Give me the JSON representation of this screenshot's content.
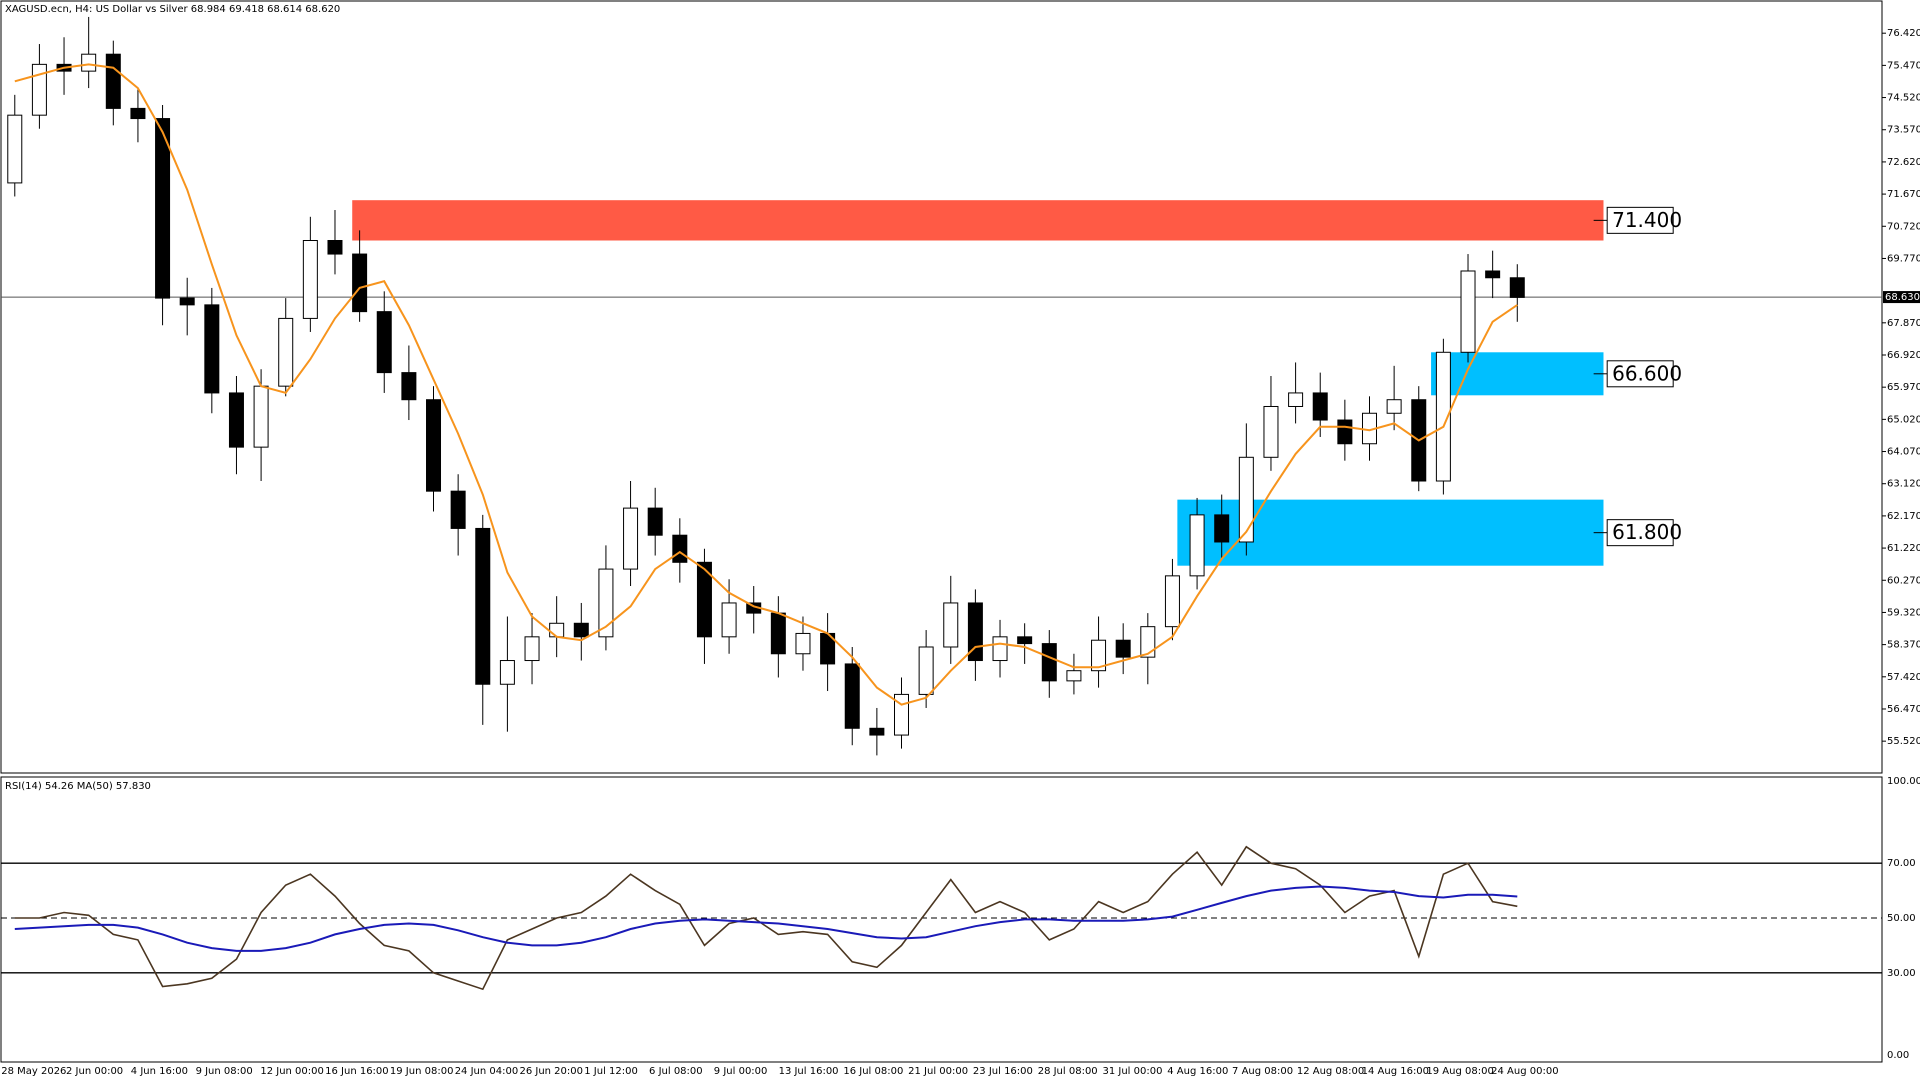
{
  "chart_data": [
    {
      "type": "candlestick",
      "title": "XAGUSD.ecn, H4:  US Dollar vs Silver  68.984 69.418 68.614 68.620",
      "ylim": [
        54.58,
        77.4
      ],
      "yticks": [
        {
          "value": 76.42,
          "label": "76.420"
        },
        {
          "value": 75.47,
          "label": "75.470"
        },
        {
          "value": 74.52,
          "label": "74.520"
        },
        {
          "value": 73.57,
          "label": "73.570"
        },
        {
          "value": 72.62,
          "label": "72.620"
        },
        {
          "value": 71.67,
          "label": "71.670"
        },
        {
          "value": 70.72,
          "label": "70.720"
        },
        {
          "value": 69.77,
          "label": "69.770"
        },
        {
          "value": 67.87,
          "label": "67.870"
        },
        {
          "value": 66.92,
          "label": "66.920"
        },
        {
          "value": 65.97,
          "label": "65.970"
        },
        {
          "value": 65.02,
          "label": "65.020"
        },
        {
          "value": 64.07,
          "label": "64.070"
        },
        {
          "value": 63.12,
          "label": "63.120"
        },
        {
          "value": 62.17,
          "label": "62.170"
        },
        {
          "value": 61.22,
          "label": "61.220"
        },
        {
          "value": 60.27,
          "label": "60.270"
        },
        {
          "value": 59.32,
          "label": "59.320"
        },
        {
          "value": 58.37,
          "label": "58.370"
        },
        {
          "value": 57.42,
          "label": "57.420"
        },
        {
          "value": 56.47,
          "label": "56.470"
        },
        {
          "value": 55.52,
          "label": "55.520"
        }
      ],
      "open": [
        72.0,
        74.0,
        75.5,
        75.3,
        75.8,
        74.2,
        73.9,
        68.6,
        68.4,
        65.8,
        64.2,
        66.0,
        68.0,
        70.3,
        69.9,
        68.2,
        66.4,
        65.6,
        62.9,
        61.8,
        57.2,
        57.9,
        58.6,
        59.0,
        58.6,
        60.6,
        62.4,
        61.6,
        60.8,
        58.6,
        59.6,
        59.3,
        58.1,
        58.7,
        57.8,
        55.9,
        55.7,
        56.9,
        58.3,
        59.6,
        57.9,
        58.6,
        58.4,
        57.3,
        57.6,
        58.5,
        58.0,
        58.9,
        60.4,
        62.2,
        61.4,
        63.9,
        65.4,
        65.8,
        65.0,
        64.3,
        65.2,
        65.6,
        63.2,
        67.0,
        69.4,
        69.2
      ],
      "high": [
        74.6,
        76.1,
        76.3,
        76.9,
        76.2,
        74.8,
        74.3,
        69.2,
        68.9,
        66.3,
        66.5,
        68.6,
        71.0,
        71.2,
        70.6,
        68.8,
        67.2,
        66.0,
        63.4,
        62.2,
        59.2,
        59.3,
        59.8,
        59.6,
        61.3,
        63.2,
        63.0,
        62.1,
        61.2,
        60.3,
        60.1,
        59.8,
        59.2,
        59.3,
        58.3,
        56.5,
        57.4,
        58.8,
        60.4,
        60.0,
        59.1,
        59.0,
        58.8,
        58.1,
        59.2,
        59.0,
        59.3,
        60.9,
        62.7,
        62.8,
        64.9,
        66.3,
        66.7,
        66.4,
        65.6,
        65.7,
        66.6,
        66.0,
        67.4,
        69.9,
        70.0,
        69.6
      ],
      "low": [
        71.6,
        73.6,
        74.6,
        74.8,
        73.7,
        73.2,
        67.8,
        67.5,
        65.2,
        63.4,
        63.2,
        65.7,
        67.6,
        69.3,
        67.9,
        65.8,
        65.0,
        62.3,
        61.0,
        56.0,
        55.8,
        57.2,
        58.0,
        57.9,
        58.2,
        60.1,
        61.0,
        60.2,
        57.8,
        58.1,
        58.7,
        57.4,
        57.6,
        57.0,
        55.4,
        55.1,
        55.3,
        56.5,
        57.8,
        57.3,
        57.4,
        57.8,
        56.8,
        56.9,
        57.1,
        57.5,
        57.2,
        58.5,
        60.0,
        60.9,
        61.0,
        63.5,
        64.9,
        64.5,
        63.8,
        63.8,
        64.7,
        62.9,
        62.8,
        66.7,
        68.6,
        67.9
      ],
      "close": [
        74.0,
        75.5,
        75.3,
        75.8,
        74.2,
        73.9,
        68.6,
        68.4,
        65.8,
        64.2,
        66.0,
        68.0,
        70.3,
        69.9,
        68.2,
        66.4,
        65.6,
        62.9,
        61.8,
        57.2,
        57.9,
        58.6,
        59.0,
        58.6,
        60.6,
        62.4,
        61.6,
        60.8,
        58.6,
        59.6,
        59.3,
        58.1,
        58.7,
        57.8,
        55.9,
        55.7,
        56.9,
        58.3,
        59.6,
        57.9,
        58.6,
        58.4,
        57.3,
        57.6,
        58.5,
        58.0,
        58.9,
        60.4,
        62.2,
        61.4,
        63.9,
        65.4,
        65.8,
        65.0,
        64.3,
        65.2,
        65.6,
        63.2,
        67.0,
        69.4,
        69.2,
        68.62
      ],
      "ma": {
        "color": "#f7941d",
        "values": [
          75.0,
          75.2,
          75.4,
          75.5,
          75.4,
          74.8,
          73.5,
          71.8,
          69.6,
          67.5,
          66.0,
          65.8,
          66.8,
          68.0,
          68.9,
          69.1,
          67.8,
          66.2,
          64.6,
          62.8,
          60.5,
          59.2,
          58.6,
          58.5,
          58.9,
          59.5,
          60.6,
          61.1,
          60.6,
          59.9,
          59.5,
          59.3,
          59.0,
          58.7,
          58.0,
          57.1,
          56.6,
          56.8,
          57.6,
          58.3,
          58.4,
          58.3,
          58.0,
          57.7,
          57.7,
          57.9,
          58.1,
          58.6,
          59.8,
          60.9,
          61.7,
          62.9,
          64.0,
          64.8,
          64.8,
          64.7,
          64.9,
          64.4,
          64.8,
          66.5,
          67.9,
          68.4
        ]
      },
      "price_line": {
        "value": 68.63,
        "label": "68.630"
      },
      "zones": [
        {
          "label": "71.400",
          "top": 71.49,
          "bottom": 70.3,
          "color": "#ff5a45"
        },
        {
          "label": "66.600",
          "top": 67.0,
          "bottom": 65.73,
          "color": "#00bfff"
        },
        {
          "label": "61.800",
          "top": 62.65,
          "bottom": 60.7,
          "color": "#00bfff"
        }
      ]
    },
    {
      "type": "line",
      "title": "RSI(14) 54.26 MA(50) 57.830",
      "ylim": [
        0,
        100
      ],
      "yticks": [
        {
          "value": 100,
          "label": "100.00"
        },
        {
          "value": 70,
          "label": "70.00"
        },
        {
          "value": 50,
          "label": "50.00"
        },
        {
          "value": 30,
          "label": "30.00"
        },
        {
          "value": 0,
          "label": "0.00"
        }
      ],
      "series": [
        {
          "color": "#4b3621",
          "values": [
            50,
            50,
            52,
            51,
            44,
            42,
            25,
            26,
            28,
            35,
            52,
            62,
            66,
            58,
            48,
            40,
            38,
            30,
            27,
            24,
            42,
            46,
            50,
            52,
            58,
            66,
            60,
            55,
            40,
            48,
            50,
            44,
            45,
            44,
            34,
            32,
            40,
            52,
            64,
            52,
            56,
            52,
            42,
            46,
            56,
            52,
            56,
            66,
            74,
            62,
            76,
            70,
            68,
            62,
            52,
            58,
            60,
            36,
            66,
            70,
            56,
            54.26
          ]
        },
        {
          "color": "#1a1ab8",
          "values": [
            46,
            46.5,
            47,
            47.5,
            47.5,
            46.5,
            44,
            41,
            39,
            38,
            38,
            39,
            41,
            44,
            46,
            47.5,
            48,
            47.5,
            45.5,
            43,
            41,
            40,
            40,
            41,
            43,
            46,
            48,
            49,
            49.5,
            49,
            48.5,
            48,
            47,
            46,
            44.5,
            43,
            42.5,
            43,
            45,
            47,
            48.5,
            49.5,
            49.5,
            49,
            49,
            49,
            49.5,
            50.5,
            53,
            55.5,
            58,
            60,
            61,
            61.5,
            61,
            60,
            59.5,
            58,
            57.5,
            58.5,
            58.5,
            57.83
          ]
        }
      ],
      "x_labels": [
        "28 May 2026",
        "2 Jun 00:00",
        "4 Jun 16:00",
        "9 Jun 08:00",
        "12 Jun 00:00",
        "16 Jun 16:00",
        "19 Jun 08:00",
        "24 Jun 04:00",
        "26 Jun 20:00",
        "1 Jul 12:00",
        "6 Jul 08:00",
        "9 Jul 00:00",
        "13 Jul 16:00",
        "16 Jul 08:00",
        "21 Jul 00:00",
        "23 Jul 16:00",
        "28 Jul 08:00",
        "31 Jul 00:00",
        "4 Aug 16:00",
        "7 Aug 08:00",
        "12 Aug 08:00",
        "14 Aug 16:00",
        "19 Aug 08:00",
        "24 Aug 00:00"
      ]
    }
  ]
}
